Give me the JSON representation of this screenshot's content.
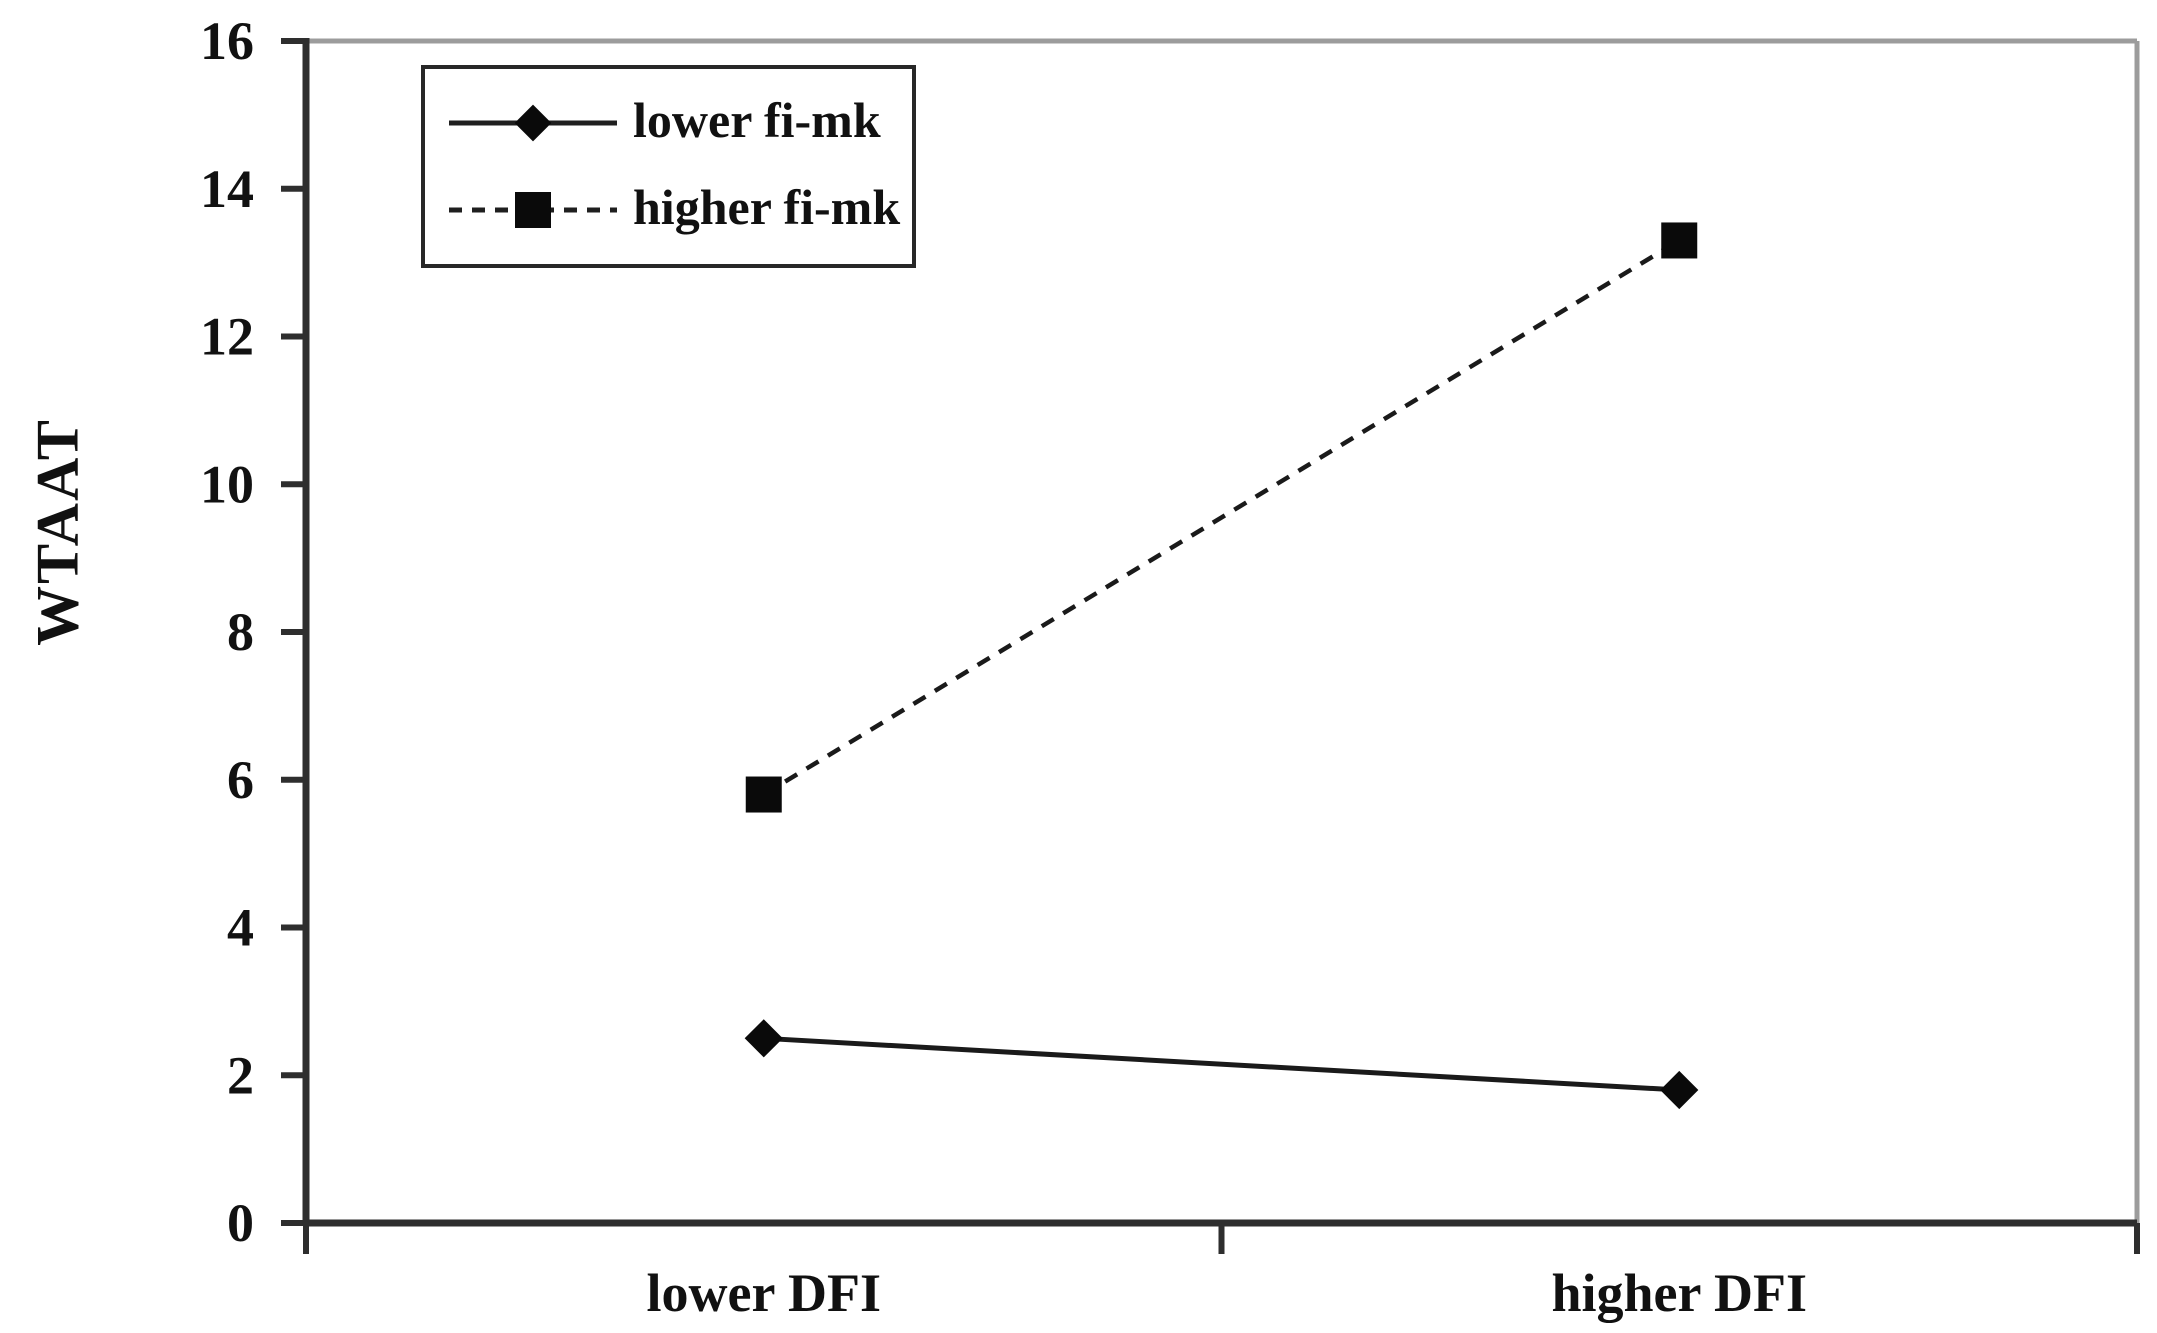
{
  "chart_data": {
    "type": "line",
    "title": "",
    "xlabel": "",
    "ylabel": "WTAAT",
    "categories": [
      "lower DFI",
      "higher DFI"
    ],
    "series": [
      {
        "name": "lower fi-mk",
        "values": [
          2.5,
          1.8
        ],
        "marker": "diamond",
        "line_style": "solid"
      },
      {
        "name": "higher fi-mk",
        "values": [
          5.8,
          13.3
        ],
        "marker": "square",
        "line_style": "dashed"
      }
    ],
    "ylim": [
      0,
      16
    ],
    "ytick_step": 2,
    "ytick_labels": [
      "0",
      "2",
      "4",
      "6",
      "8",
      "10",
      "12",
      "14",
      "16"
    ],
    "grid": false,
    "legend_position": "top-left",
    "colors": {
      "series": "#1a1a1a",
      "axis": "#2e2e2e",
      "frame_border": "#9c9c9c",
      "background": "#ffffff",
      "text": "#111111"
    }
  }
}
